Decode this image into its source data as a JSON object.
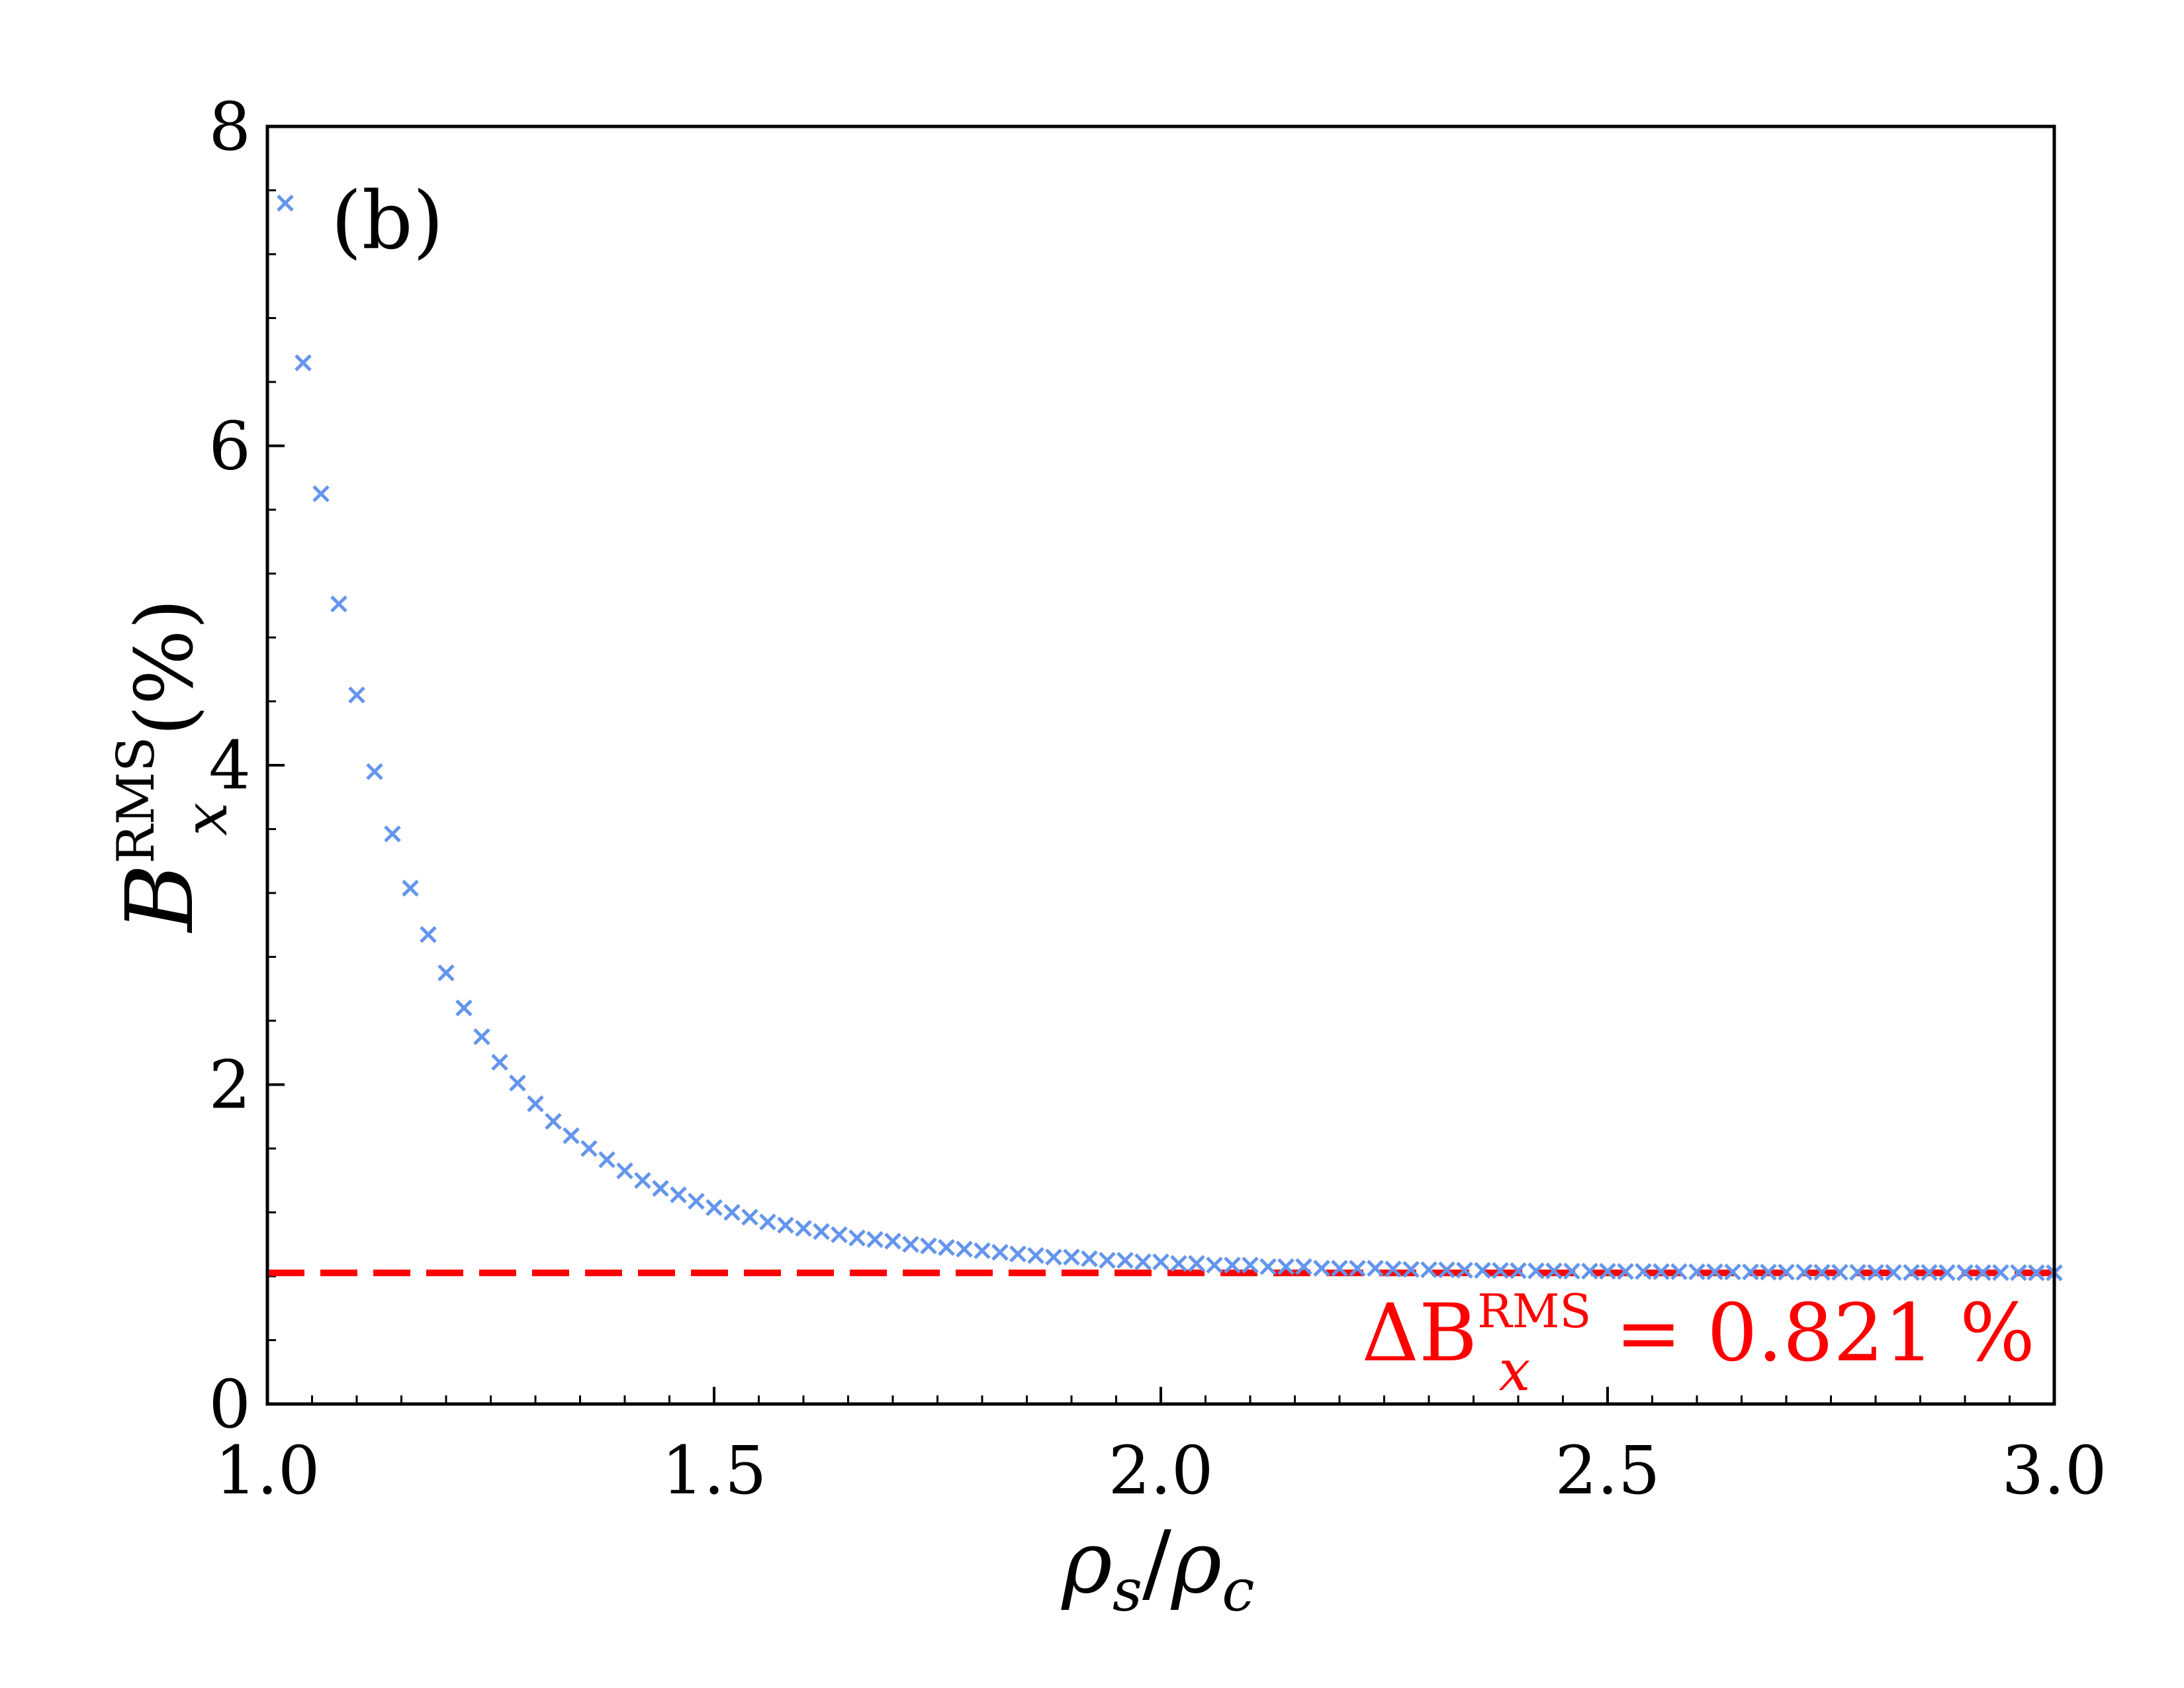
{
  "chart_data": {
    "type": "scatter",
    "panel_label": "(b)",
    "xlabel": {
      "rho": "ρ",
      "sub1": "s",
      "slash": "/",
      "sub2": "c"
    },
    "ylabel": {
      "base": "B",
      "sup": "RMS",
      "sub": "x",
      "unit": "(%)"
    },
    "xlim": [
      1.0,
      3.0
    ],
    "ylim": [
      0,
      8
    ],
    "xticks": [
      1.0,
      1.5,
      2.0,
      2.5,
      3.0
    ],
    "xtick_labels": [
      "1.0",
      "1.5",
      "2.0",
      "2.5",
      "3.0"
    ],
    "yticks": [
      0,
      2,
      4,
      6,
      8
    ],
    "ytick_labels": [
      "0",
      "2",
      "4",
      "6",
      "8"
    ],
    "grid": false,
    "colors": {
      "series": "#6495ED",
      "reference": "#FF0000",
      "axis": "#000000"
    },
    "series": [
      {
        "name": "B_x^RMS",
        "marker": "x",
        "x": [
          1.02,
          1.04,
          1.06,
          1.08,
          1.1,
          1.12,
          1.14,
          1.16,
          1.18,
          1.2,
          1.22,
          1.24,
          1.26,
          1.28,
          1.3,
          1.32,
          1.34,
          1.36,
          1.38,
          1.4,
          1.42,
          1.44,
          1.46,
          1.48,
          1.5,
          1.52,
          1.54,
          1.56,
          1.58,
          1.6,
          1.62,
          1.64,
          1.66,
          1.68,
          1.7,
          1.72,
          1.74,
          1.76,
          1.78,
          1.8,
          1.82,
          1.84,
          1.86,
          1.88,
          1.9,
          1.92,
          1.94,
          1.96,
          1.98,
          2.0,
          2.02,
          2.04,
          2.06,
          2.08,
          2.1,
          2.12,
          2.14,
          2.16,
          2.18,
          2.2,
          2.22,
          2.24,
          2.26,
          2.28,
          2.3,
          2.32,
          2.34,
          2.36,
          2.38,
          2.4,
          2.42,
          2.44,
          2.46,
          2.48,
          2.5,
          2.52,
          2.54,
          2.56,
          2.58,
          2.6,
          2.62,
          2.64,
          2.66,
          2.68,
          2.7,
          2.72,
          2.74,
          2.76,
          2.78,
          2.8,
          2.82,
          2.84,
          2.86,
          2.88,
          2.9,
          2.92,
          2.94,
          2.96,
          2.98,
          3.0
        ],
        "y": [
          7.52,
          6.52,
          5.7,
          5.01,
          4.44,
          3.96,
          3.57,
          3.23,
          2.94,
          2.7,
          2.48,
          2.3,
          2.14,
          2.01,
          1.88,
          1.77,
          1.68,
          1.6,
          1.53,
          1.46,
          1.4,
          1.35,
          1.31,
          1.27,
          1.23,
          1.2,
          1.17,
          1.14,
          1.12,
          1.1,
          1.08,
          1.06,
          1.04,
          1.03,
          1.02,
          1.0,
          0.99,
          0.98,
          0.97,
          0.96,
          0.95,
          0.94,
          0.93,
          0.92,
          0.92,
          0.91,
          0.9,
          0.9,
          0.89,
          0.89,
          0.88,
          0.88,
          0.87,
          0.87,
          0.87,
          0.86,
          0.86,
          0.86,
          0.85,
          0.85,
          0.85,
          0.85,
          0.845,
          0.843,
          0.841,
          0.84,
          0.838,
          0.837,
          0.836,
          0.835,
          0.834,
          0.833,
          0.832,
          0.832,
          0.831,
          0.83,
          0.83,
          0.829,
          0.829,
          0.828,
          0.828,
          0.827,
          0.827,
          0.826,
          0.826,
          0.826,
          0.825,
          0.825,
          0.825,
          0.824,
          0.824,
          0.824,
          0.824,
          0.823,
          0.823,
          0.823,
          0.823,
          0.823,
          0.822,
          0.822
        ]
      }
    ],
    "reference_line": {
      "value": 0.821,
      "style": "dashed",
      "annotation": {
        "prefix": "ΔB",
        "sup": "RMS",
        "sub": "x",
        "rest": " = 0.821 %"
      }
    }
  }
}
